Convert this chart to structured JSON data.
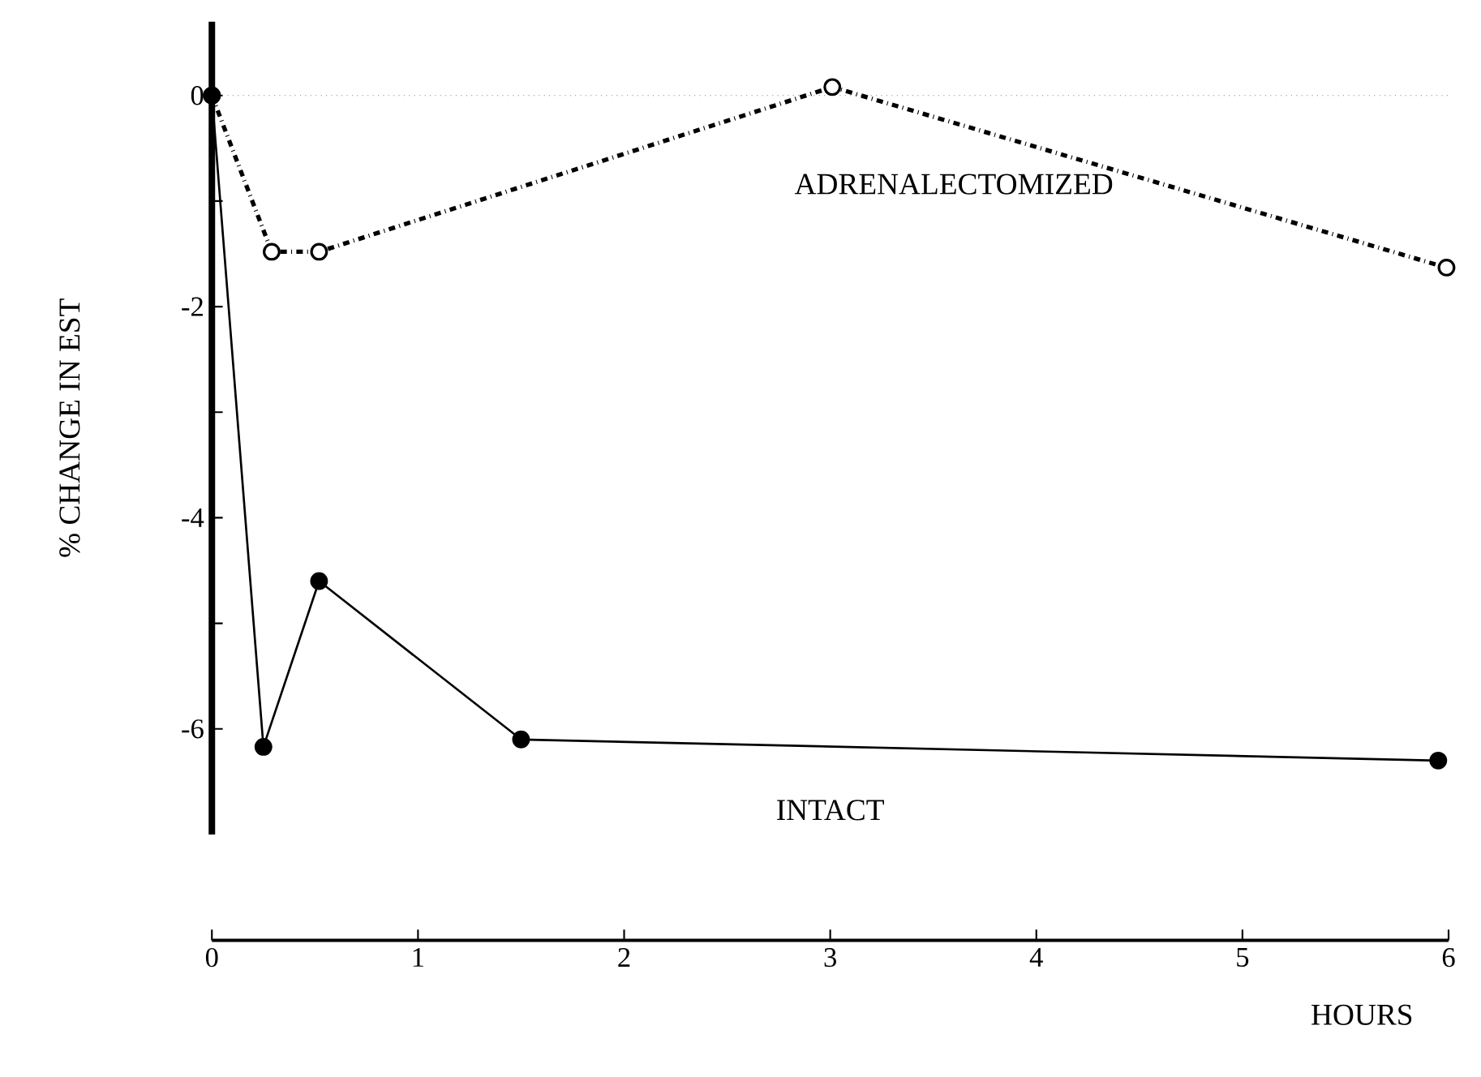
{
  "chart_data": {
    "type": "line",
    "xlabel": "HOURS",
    "ylabel": "% CHANGE IN EST",
    "xlim": [
      0,
      6
    ],
    "ylim": [
      -7,
      0.7
    ],
    "xticks": [
      0,
      1,
      2,
      3,
      4,
      5,
      6
    ],
    "yticks": [
      0,
      {
        "value": -1,
        "label": null
      },
      -2,
      {
        "value": -3,
        "label": null
      },
      -4,
      {
        "value": -5,
        "label": null
      },
      -6
    ],
    "legend": false,
    "grid": false,
    "marker": "circle",
    "ref_lines": [
      {
        "axis": "y",
        "value": 0,
        "line_style": "dotted"
      }
    ],
    "series": [
      {
        "name": "ADRENALECTOMIZED",
        "color": "#000000",
        "line_style": "dashed",
        "x": [
          0,
          0.29,
          0.52,
          3.01,
          5.99
        ],
        "values": [
          0,
          -1.48,
          -1.48,
          0.08,
          -1.63
        ]
      },
      {
        "name": "INTACT",
        "color": "#000000",
        "line_style": "solid",
        "x": [
          0,
          0.25,
          0.52,
          1.5,
          5.95
        ],
        "values": [
          0,
          -6.17,
          -4.6,
          -6.1,
          -6.3
        ]
      }
    ]
  }
}
